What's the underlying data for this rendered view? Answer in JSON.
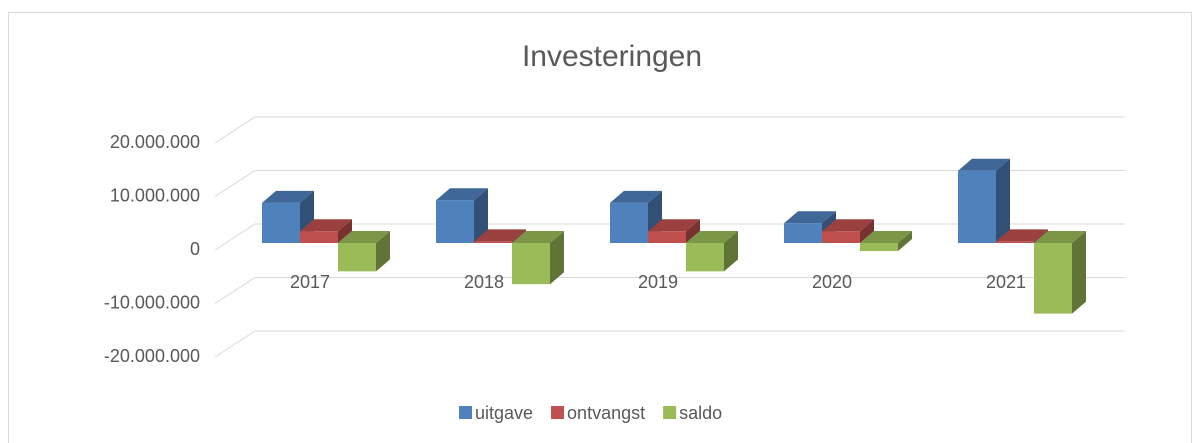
{
  "chart_data": {
    "type": "bar3d",
    "title": "Investeringen",
    "categories": [
      "2017",
      "2018",
      "2019",
      "2020",
      "2021"
    ],
    "series": [
      {
        "name": "uitgave",
        "color": "#4f81bd",
        "values": [
          7500000,
          8000000,
          7500000,
          3700000,
          13500000
        ]
      },
      {
        "name": "ontvangst",
        "color": "#c0504d",
        "values": [
          2200000,
          300000,
          2200000,
          2200000,
          300000
        ]
      },
      {
        "name": "saldo",
        "color": "#9bbb59",
        "values": [
          -5300000,
          -7700000,
          -5300000,
          -1500000,
          -13200000
        ]
      }
    ],
    "ylim": [
      -20000000,
      20000000
    ],
    "yticks": [
      {
        "value": 20000000,
        "label": "20.000.000"
      },
      {
        "value": 10000000,
        "label": "10.000.000"
      },
      0,
      {
        "value": -10000000,
        "label": "-10.000.000"
      },
      {
        "value": -20000000,
        "label": "-20.000.000"
      }
    ],
    "grid": true,
    "legend": "bottom"
  }
}
